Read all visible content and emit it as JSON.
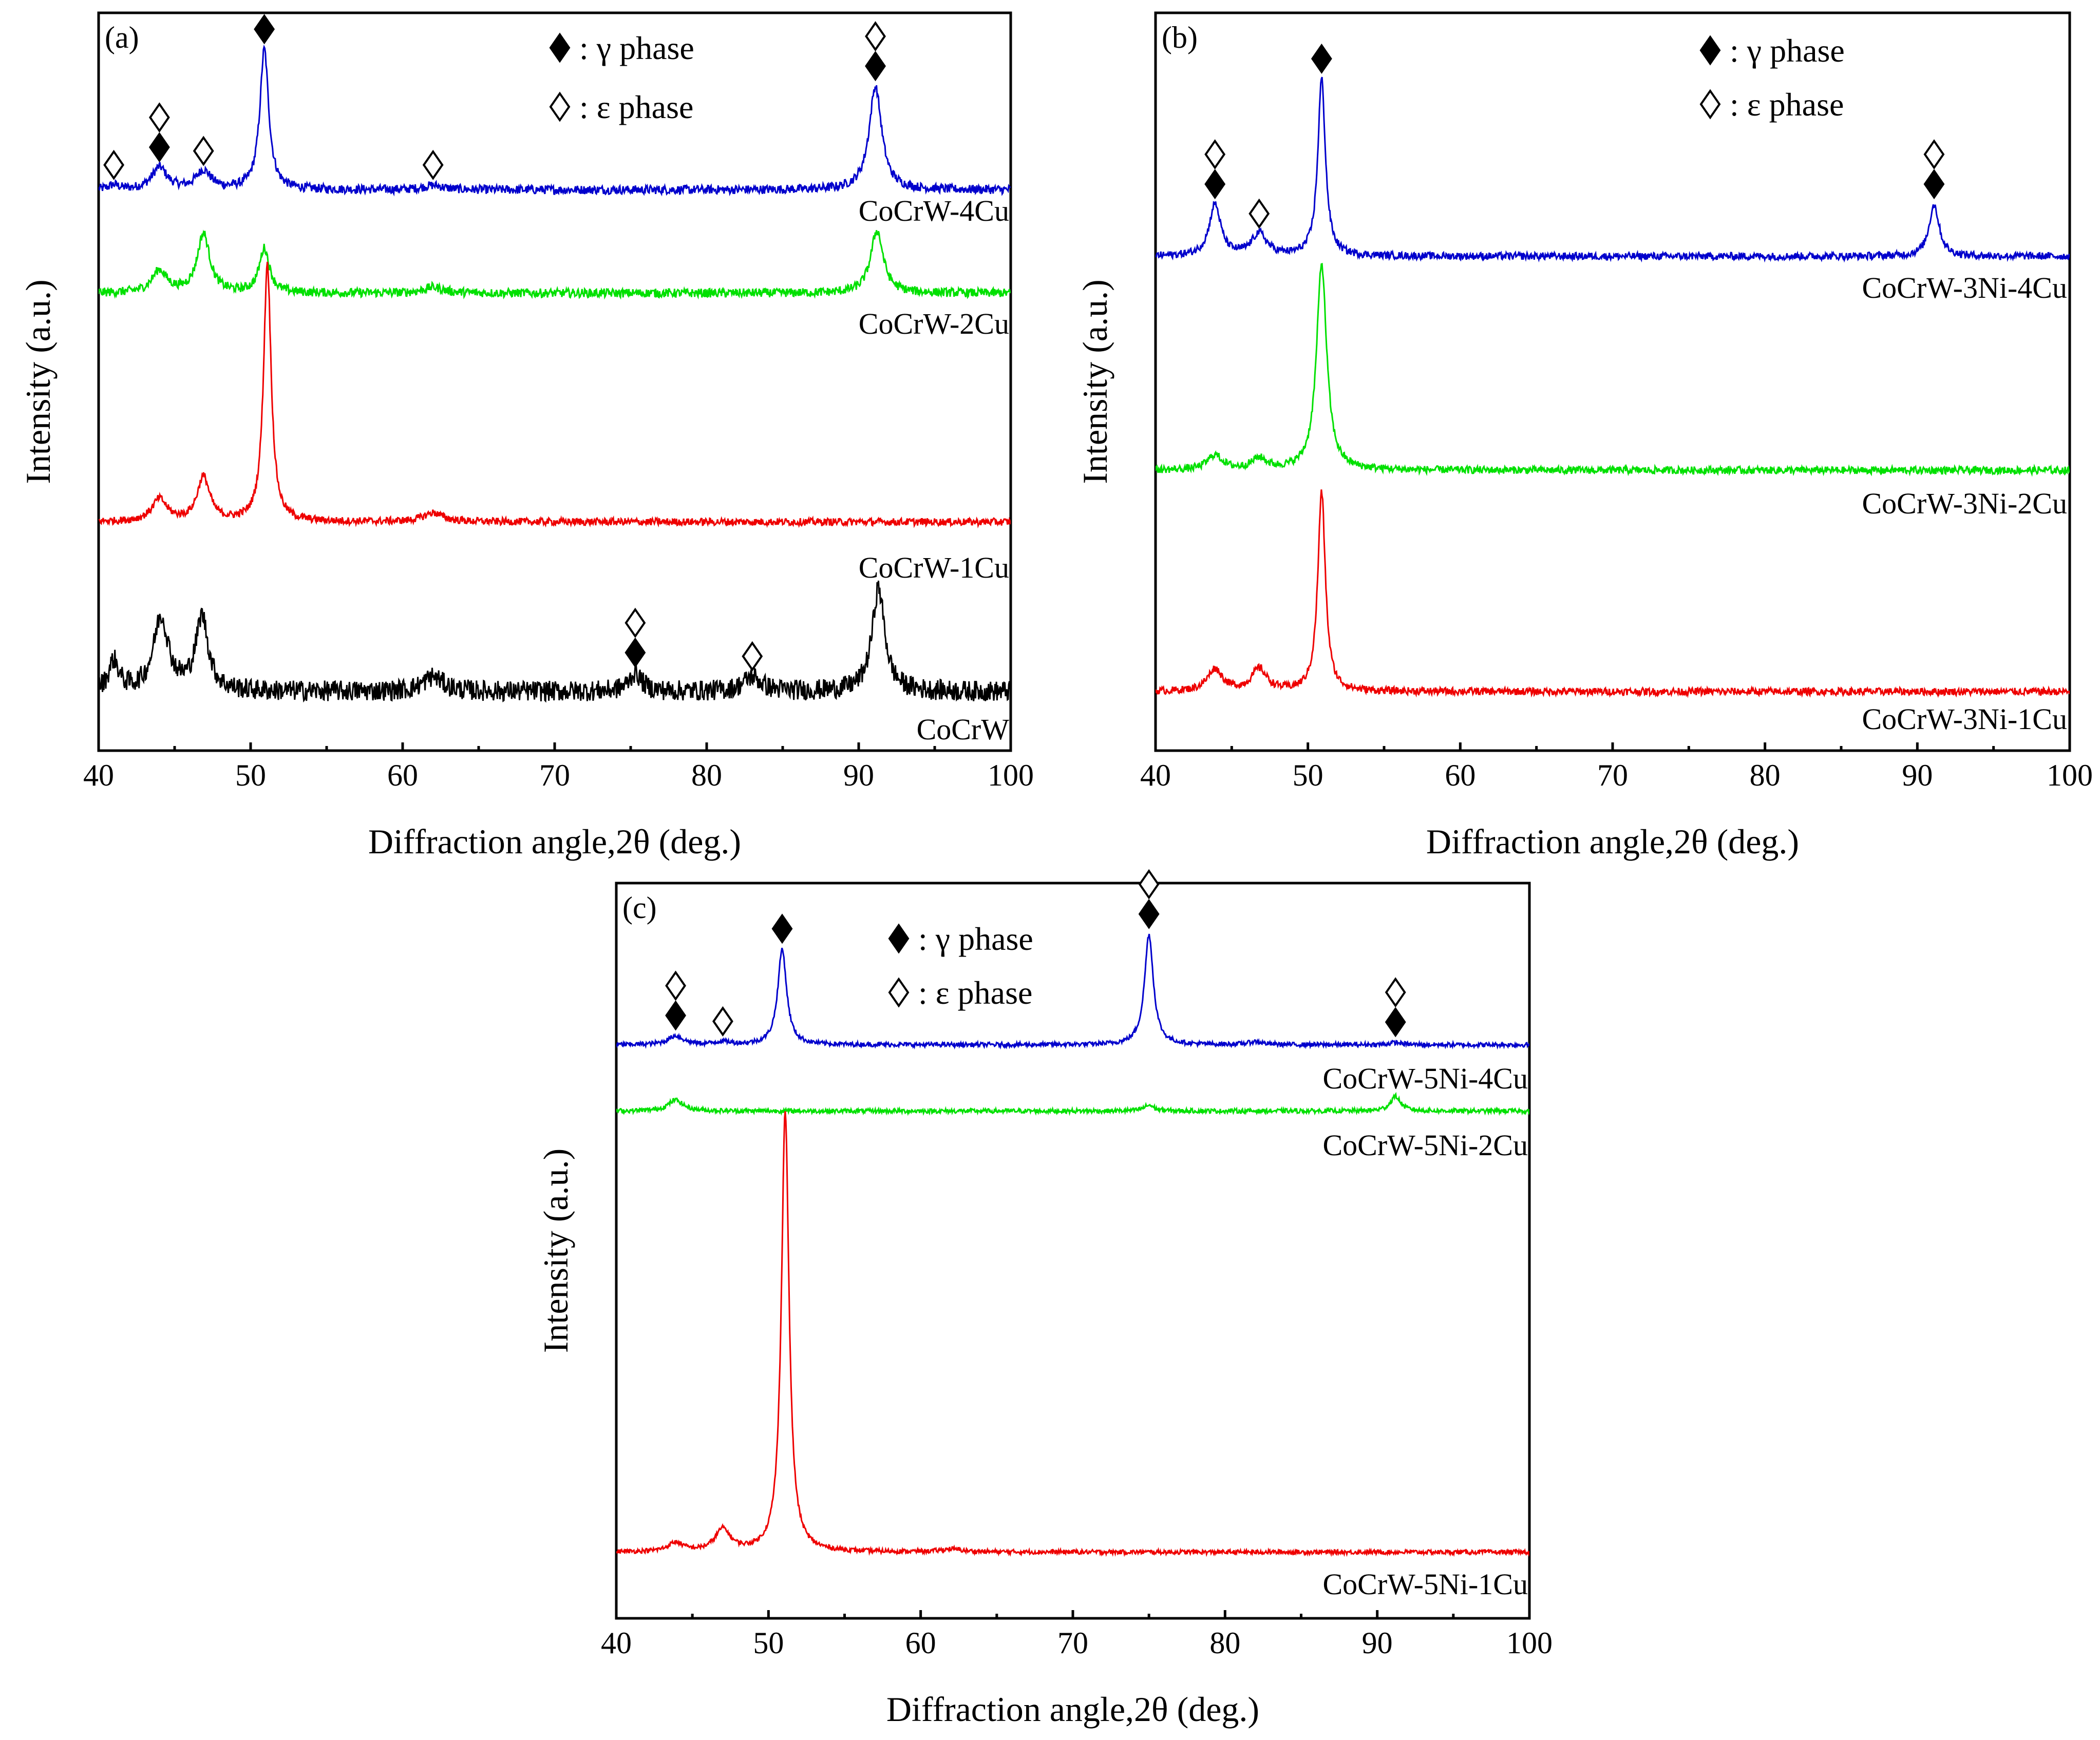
{
  "chart_data": [
    {
      "type": "line",
      "panel_label": "(a)",
      "xlabel": "Diffraction angle,2θ (deg.)",
      "ylabel": "Intensity (a.u.)",
      "xlim": [
        40,
        100
      ],
      "xticks": [
        "40",
        "50",
        "60",
        "70",
        "80",
        "90",
        "100"
      ],
      "legend": [
        {
          "symbol": "◆",
          "label": ": γ phase"
        },
        {
          "symbol": "◊",
          "label": ": ε phase"
        }
      ],
      "series": [
        {
          "name": "CoCrW-4Cu",
          "color": "#0000cc",
          "baseline": 0.76,
          "noise": 0.006,
          "peaks": [
            [
              41.0,
              0.006,
              0.4
            ],
            [
              44.0,
              0.03,
              0.6
            ],
            [
              46.9,
              0.025,
              0.6
            ],
            [
              50.9,
              0.19,
              0.35
            ],
            [
              62.0,
              0.006,
              0.8
            ],
            [
              91.1,
              0.14,
              0.5
            ]
          ]
        },
        {
          "name": "CoCrW-2Cu",
          "color": "#00e000",
          "baseline": 0.62,
          "noise": 0.006,
          "peaks": [
            [
              44.0,
              0.03,
              0.6
            ],
            [
              46.9,
              0.08,
              0.5
            ],
            [
              50.9,
              0.06,
              0.4
            ],
            [
              62.0,
              0.008,
              0.8
            ],
            [
              91.2,
              0.085,
              0.5
            ]
          ]
        },
        {
          "name": "CoCrW-1Cu",
          "color": "#ee0000",
          "baseline": 0.31,
          "noise": 0.005,
          "peaks": [
            [
              44.0,
              0.03,
              0.6
            ],
            [
              46.9,
              0.06,
              0.5
            ],
            [
              51.1,
              0.35,
              0.3
            ],
            [
              62.0,
              0.012,
              0.8
            ]
          ]
        },
        {
          "name": "CoCrW",
          "color": "#000000",
          "baseline": 0.08,
          "noise": 0.014,
          "peaks": [
            [
              41.0,
              0.04,
              0.4
            ],
            [
              44.1,
              0.1,
              0.6
            ],
            [
              46.8,
              0.1,
              0.5
            ],
            [
              62.0,
              0.02,
              0.8
            ],
            [
              75.3,
              0.025,
              0.5
            ],
            [
              83.0,
              0.02,
              0.7
            ],
            [
              91.3,
              0.14,
              0.5
            ]
          ]
        }
      ],
      "markers": [
        {
          "x": 41.0,
          "phases": [
            "ε"
          ]
        },
        {
          "x": 44.0,
          "phases": [
            "γ",
            "ε"
          ]
        },
        {
          "x": 46.9,
          "phases": [
            "ε"
          ]
        },
        {
          "x": 50.9,
          "phases": [
            "γ"
          ]
        },
        {
          "x": 62.0,
          "phases": [
            "ε"
          ]
        },
        {
          "x": 91.1,
          "phases": [
            "γ",
            "ε"
          ]
        },
        {
          "x": 75.3,
          "phases": [
            "γ",
            "ε"
          ]
        },
        {
          "x": 83.0,
          "phases": [
            "ε"
          ]
        }
      ]
    },
    {
      "type": "line",
      "panel_label": "(b)",
      "xlabel": "Diffraction angle,2θ (deg.)",
      "ylabel": "Intensity (a.u.)",
      "xlim": [
        40,
        100
      ],
      "xticks": [
        "40",
        "50",
        "60",
        "70",
        "80",
        "90",
        "100"
      ],
      "legend": [
        {
          "symbol": "◆",
          "label": ": γ phase"
        },
        {
          "symbol": "◊",
          "label": ": ε phase"
        }
      ],
      "series": [
        {
          "name": "CoCrW-3Ni-4Cu",
          "color": "#0000cc",
          "baseline": 0.67,
          "noise": 0.005,
          "peaks": [
            [
              43.9,
              0.07,
              0.45
            ],
            [
              46.8,
              0.03,
              0.6
            ],
            [
              50.9,
              0.24,
              0.3
            ],
            [
              91.1,
              0.07,
              0.4
            ]
          ]
        },
        {
          "name": "CoCrW-3Ni-2Cu",
          "color": "#00e000",
          "baseline": 0.38,
          "noise": 0.005,
          "peaks": [
            [
              43.9,
              0.02,
              0.6
            ],
            [
              46.8,
              0.015,
              0.6
            ],
            [
              50.9,
              0.28,
              0.4
            ]
          ]
        },
        {
          "name": "CoCrW-3Ni-1Cu",
          "color": "#ee0000",
          "baseline": 0.08,
          "noise": 0.005,
          "peaks": [
            [
              43.9,
              0.03,
              0.6
            ],
            [
              46.8,
              0.03,
              0.6
            ],
            [
              50.9,
              0.27,
              0.3
            ]
          ]
        }
      ],
      "markers": [
        {
          "x": 43.9,
          "phases": [
            "γ",
            "ε"
          ]
        },
        {
          "x": 46.8,
          "phases": [
            "ε"
          ]
        },
        {
          "x": 50.9,
          "phases": [
            "γ"
          ]
        },
        {
          "x": 91.1,
          "phases": [
            "γ",
            "ε"
          ]
        }
      ]
    },
    {
      "type": "line",
      "panel_label": "(c)",
      "xlabel": "Diffraction angle,2θ (deg.)",
      "ylabel": "Intensity (a.u.)",
      "xlim": [
        40,
        100
      ],
      "xticks": [
        "40",
        "50",
        "60",
        "70",
        "80",
        "90",
        "100"
      ],
      "legend": [
        {
          "symbol": "◆",
          "label": ": γ phase"
        },
        {
          "symbol": "◊",
          "label": ": ε phase"
        }
      ],
      "series": [
        {
          "name": "CoCrW-5Ni-4Cu",
          "color": "#0000cc",
          "baseline": 0.78,
          "noise": 0.003,
          "peaks": [
            [
              43.9,
              0.012,
              0.6
            ],
            [
              47.0,
              0.004,
              0.6
            ],
            [
              50.9,
              0.13,
              0.35
            ],
            [
              75.0,
              0.15,
              0.35
            ],
            [
              82.0,
              0.004,
              0.6
            ],
            [
              91.2,
              0.003,
              0.5
            ]
          ]
        },
        {
          "name": "CoCrW-5Ni-2Cu",
          "color": "#00e000",
          "baseline": 0.69,
          "noise": 0.003,
          "peaks": [
            [
              43.9,
              0.015,
              0.6
            ],
            [
              75.0,
              0.008,
              0.4
            ],
            [
              91.2,
              0.02,
              0.4
            ]
          ]
        },
        {
          "name": "CoCrW-5Ni-1Cu",
          "color": "#ee0000",
          "baseline": 0.09,
          "noise": 0.003,
          "peaks": [
            [
              43.9,
              0.012,
              0.6
            ],
            [
              47.0,
              0.03,
              0.6
            ],
            [
              51.1,
              0.6,
              0.3
            ],
            [
              62.0,
              0.004,
              0.8
            ]
          ]
        }
      ],
      "markers": [
        {
          "x": 43.9,
          "phases": [
            "γ",
            "ε"
          ]
        },
        {
          "x": 47.0,
          "phases": [
            "ε"
          ]
        },
        {
          "x": 50.9,
          "phases": [
            "γ"
          ]
        },
        {
          "x": 75.0,
          "phases": [
            "γ",
            "ε"
          ]
        },
        {
          "x": 91.2,
          "phases": [
            "γ",
            "ε"
          ]
        }
      ]
    }
  ]
}
